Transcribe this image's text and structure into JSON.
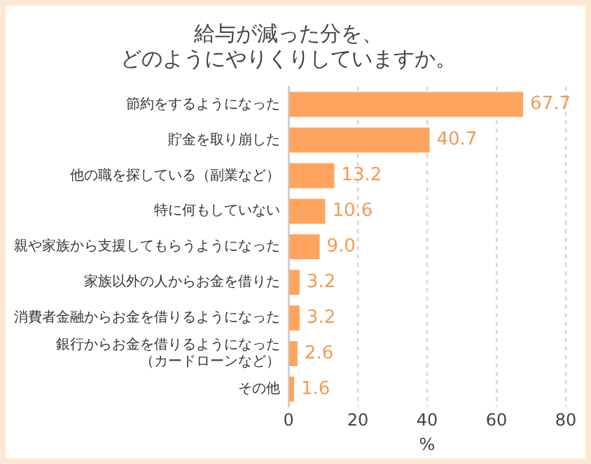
{
  "chart_data": {
    "type": "bar",
    "orientation": "horizontal",
    "title": "給与が減った分を、どのようにやりくりしていますか。",
    "xlabel": "%",
    "categories": [
      "節約をするようになった",
      "貯金を取り崩した",
      "他の職を探している（副業など）",
      "特に何もしていない",
      "親や家族から支援してもらうようになった",
      "家族以外の人からお金を借りた",
      "消費者金融からお金を借りるようになった",
      "銀行からお金を借りるようになった（カードローンなど）",
      "その他"
    ],
    "values": [
      67.7,
      40.7,
      13.2,
      10.6,
      9.0,
      3.2,
      3.2,
      2.6,
      1.6
    ],
    "value_labels": [
      "67.7",
      "40.7",
      "13.2",
      "10.6",
      "9.0",
      "3.2",
      "3.2",
      "2.6",
      "1.6"
    ],
    "color": "#ffa45e",
    "xlim": [
      0,
      80
    ],
    "xticks": [
      0,
      20,
      40,
      60,
      80
    ],
    "grid": "x",
    "legend": false
  }
}
